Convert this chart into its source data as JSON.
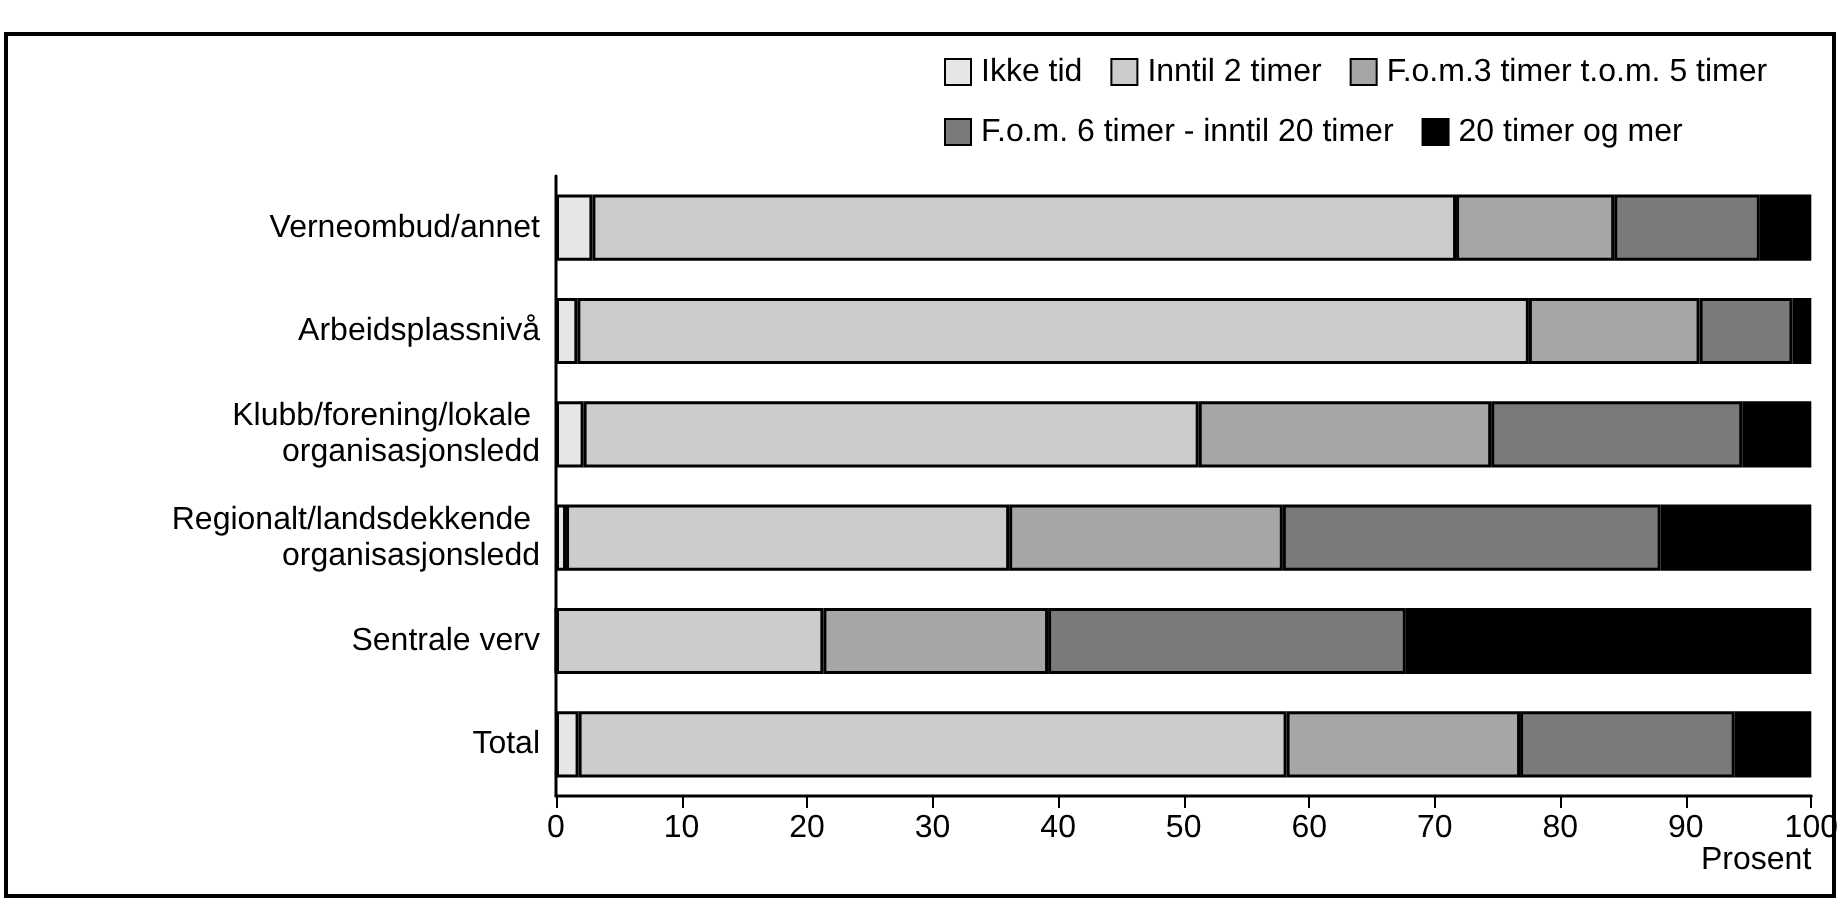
{
  "chart_data": {
    "type": "bar",
    "orientation": "horizontal",
    "stacked": true,
    "xlabel": "Prosent",
    "categories": [
      "Verneombud/annet",
      "Arbeidsplassnivå",
      "Klubb/forening/lokale organisasjonsledd",
      "Regionalt/landsdekkende organisasjonsledd",
      "Sentrale verv",
      "Total"
    ],
    "series": [
      {
        "name": "Ikke tid",
        "color": "#e6e6e6",
        "values": [
          2.9,
          1.7,
          2.2,
          0.8,
          0,
          1.8
        ]
      },
      {
        "name": "Inntil 2 timer",
        "color": "#cccccc",
        "values": [
          68.8,
          75.8,
          49.0,
          35.3,
          21.3,
          56.4
        ]
      },
      {
        "name": "F.o.m.3 timer t.o.m. 5 timer",
        "color": "#a6a6a6",
        "values": [
          12.6,
          13.6,
          23.3,
          21.8,
          17.9,
          18.6
        ]
      },
      {
        "name": "F.o.m. 6 timer - inntil 20 timer",
        "color": "#7a7a7a",
        "values": [
          11.6,
          7.4,
          20.0,
          30.1,
          28.5,
          17.1
        ]
      },
      {
        "name": "20 timer og mer",
        "color": "#000000",
        "values": [
          4.1,
          1.5,
          5.5,
          12.0,
          32.3,
          6.1
        ]
      }
    ],
    "xlim": [
      0,
      100
    ],
    "xticks": [
      0,
      10,
      20,
      30,
      40,
      50,
      60,
      70,
      80,
      90,
      100
    ],
    "grid": false,
    "legend": "top"
  }
}
